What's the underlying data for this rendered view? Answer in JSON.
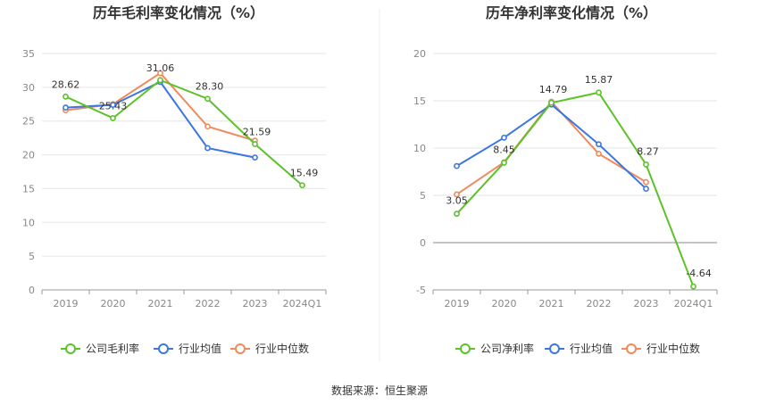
{
  "source_label": "数据来源：恒生聚源",
  "colors": {
    "company": "#5cc22a",
    "industry_avg": "#3b76e1",
    "industry_median": "#f08a5d",
    "grid": "#e6e6e6",
    "axis": "#999999"
  },
  "chart_data": [
    {
      "type": "line",
      "title": "历年毛利率变化情况（%）",
      "categories": [
        "2019",
        "2020",
        "2021",
        "2022",
        "2023",
        "2024Q1"
      ],
      "ylim": [
        0,
        35
      ],
      "yticks": [
        0,
        5,
        10,
        15,
        20,
        25,
        30,
        35
      ],
      "grid": true,
      "legend_position": "bottom",
      "series": [
        {
          "name": "公司毛利率",
          "key": "company",
          "values": [
            28.62,
            25.43,
            31.06,
            28.3,
            21.59,
            15.49
          ],
          "labels": [
            "28.62",
            "25.43",
            "31.06",
            "28.30",
            "21.59",
            "15.49"
          ]
        },
        {
          "name": "行业均值",
          "key": "industry_avg",
          "values": [
            27.0,
            27.4,
            30.8,
            21.0,
            19.6,
            null
          ]
        },
        {
          "name": "行业中位数",
          "key": "industry_median",
          "values": [
            26.6,
            27.5,
            32.1,
            24.2,
            22.1,
            null
          ]
        }
      ]
    },
    {
      "type": "line",
      "title": "历年净利率变化情况（%）",
      "categories": [
        "2019",
        "2020",
        "2021",
        "2022",
        "2023",
        "2024Q1"
      ],
      "ylim": [
        -5,
        20
      ],
      "yticks": [
        -5,
        0,
        5,
        10,
        15,
        20
      ],
      "grid": true,
      "legend_position": "bottom",
      "series": [
        {
          "name": "公司净利率",
          "key": "company",
          "values": [
            3.05,
            8.45,
            14.79,
            15.87,
            8.27,
            -4.64
          ],
          "labels": [
            "3.05",
            "8.45",
            "14.79",
            "15.87",
            "8.27",
            "-4.64"
          ]
        },
        {
          "name": "行业均值",
          "key": "industry_avg",
          "values": [
            8.1,
            11.1,
            14.6,
            10.4,
            5.7,
            null
          ]
        },
        {
          "name": "行业中位数",
          "key": "industry_median",
          "values": [
            5.1,
            8.5,
            14.9,
            9.4,
            6.4,
            null
          ]
        }
      ]
    }
  ]
}
